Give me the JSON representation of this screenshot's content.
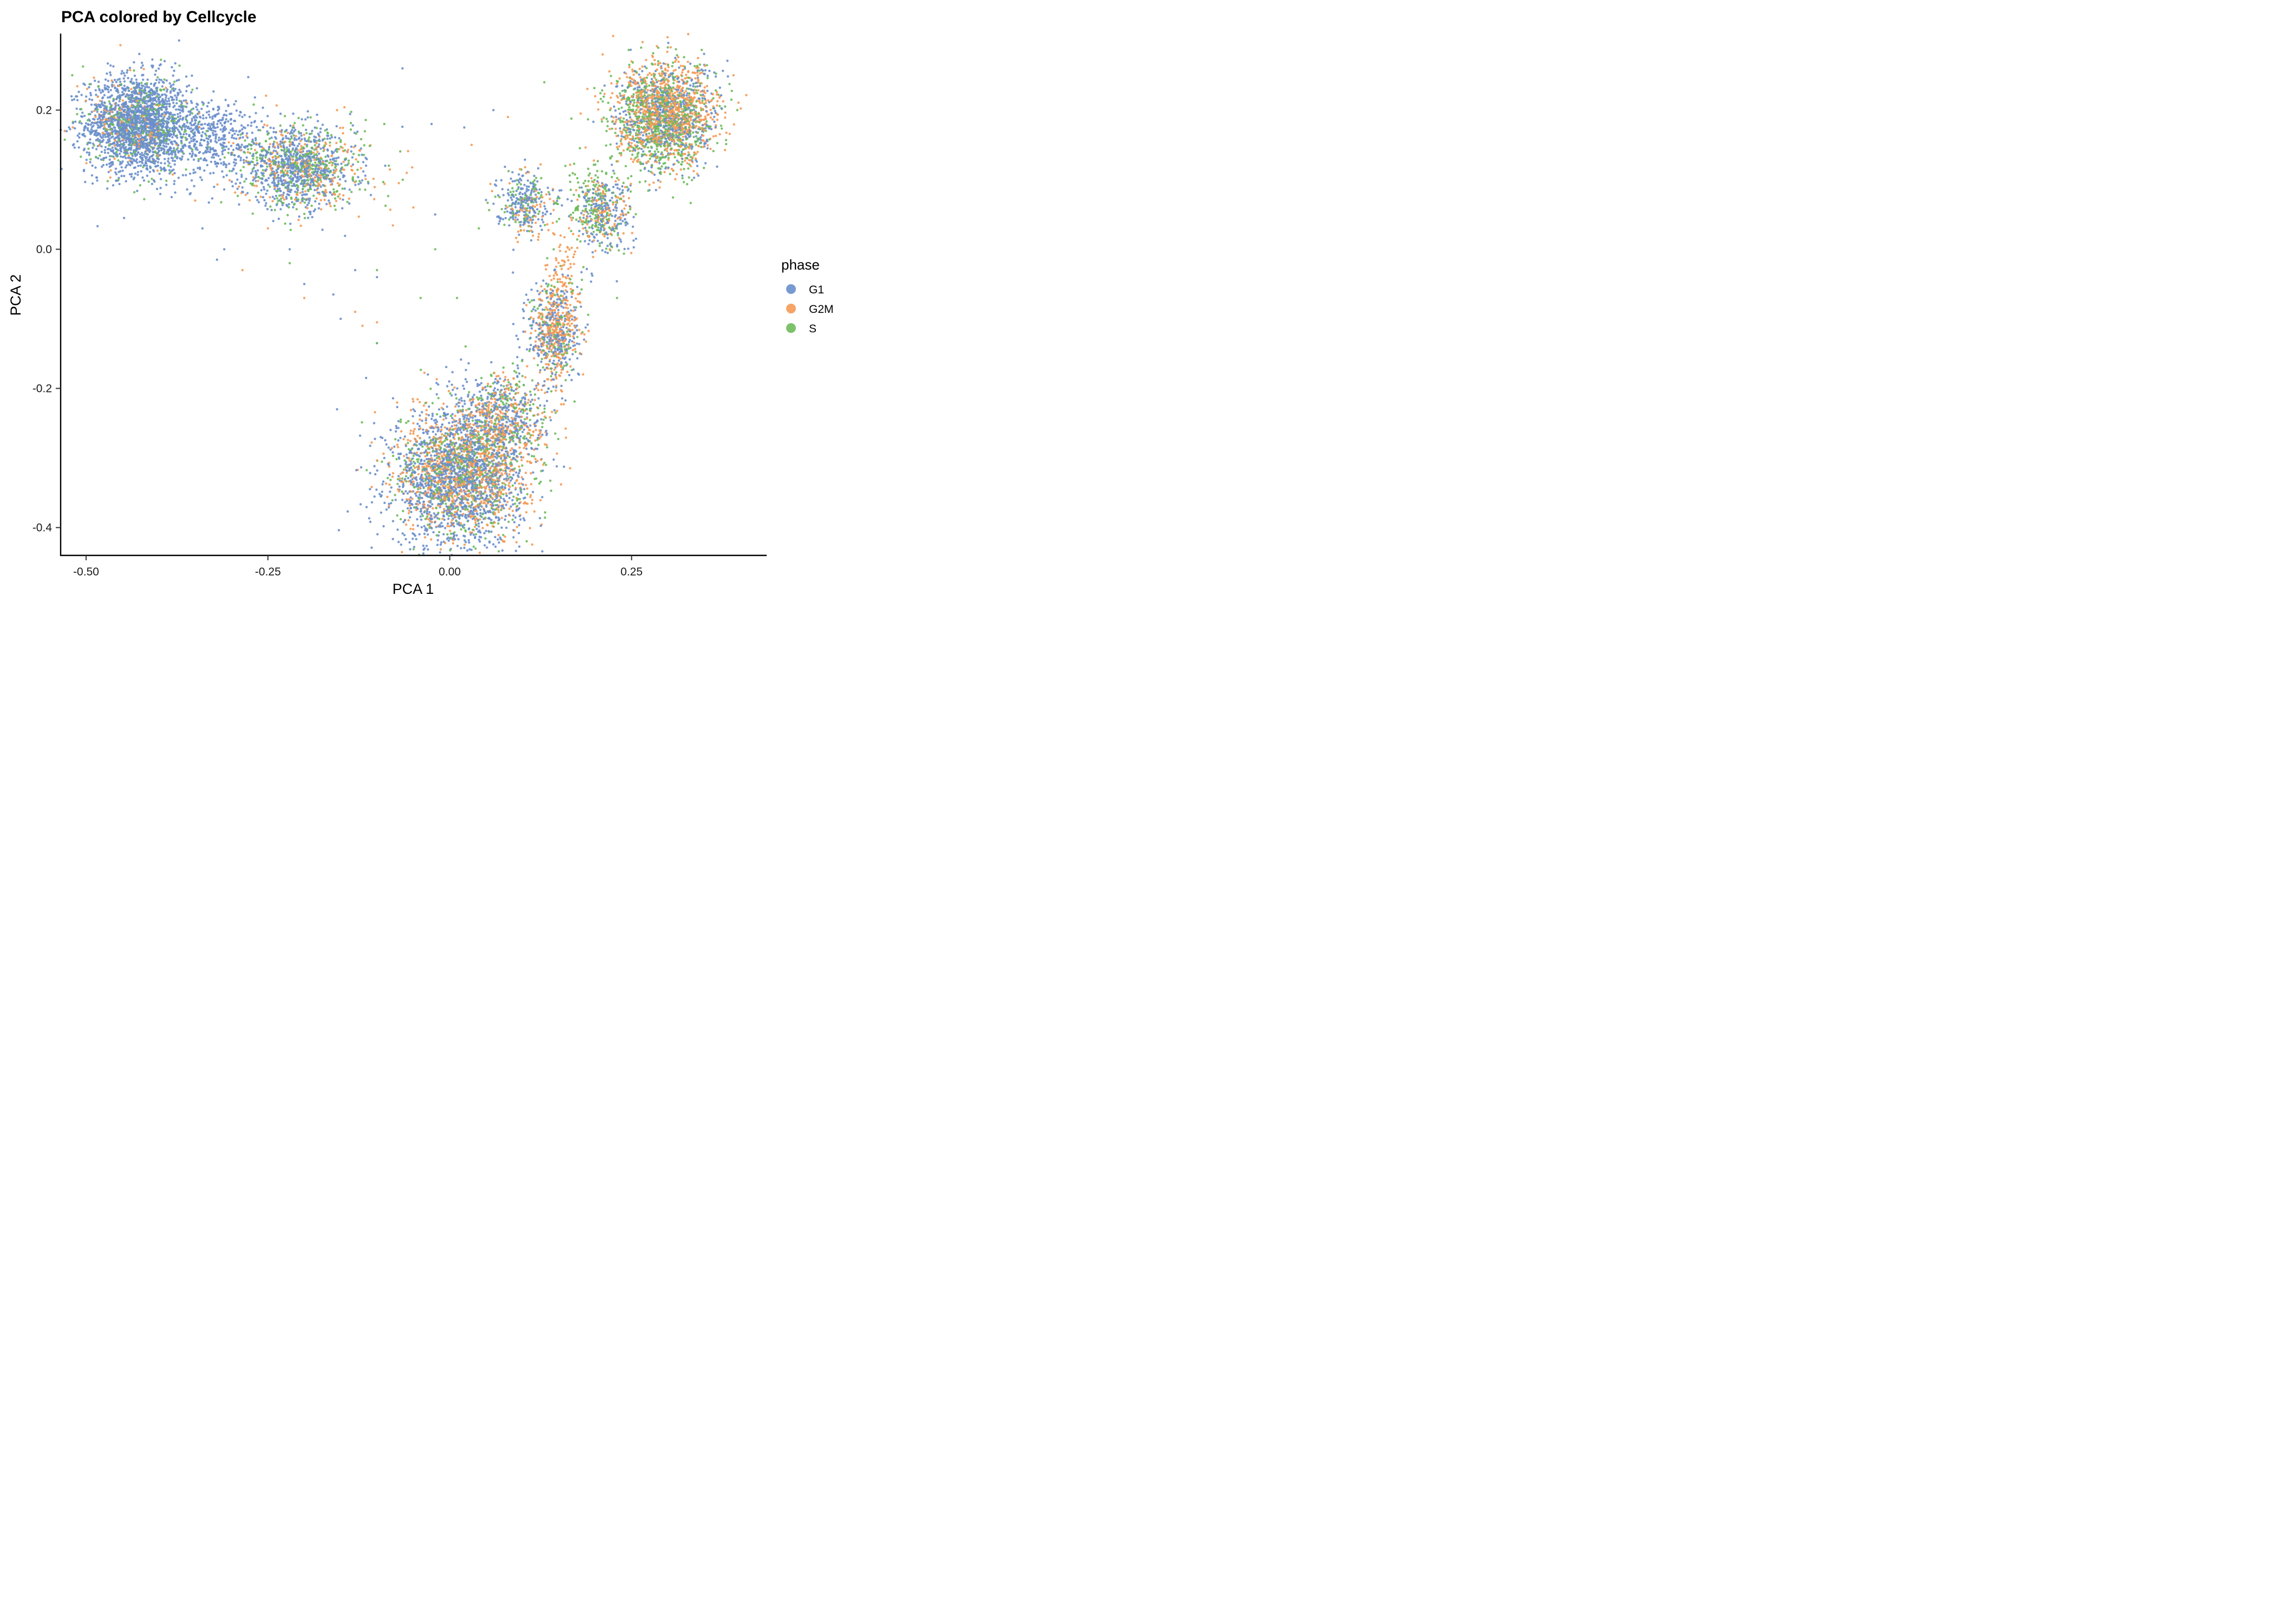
{
  "chart_data": {
    "type": "scatter",
    "title": "PCA colored by Cellcycle",
    "xlabel": "PCA 1",
    "ylabel": "PCA 2",
    "xlim": [
      -0.535,
      0.435
    ],
    "ylim": [
      -0.44,
      0.31
    ],
    "x_ticks": [
      -0.5,
      -0.25,
      0.0,
      0.25
    ],
    "x_tick_labels": [
      "-0.50",
      "-0.25",
      "0.00",
      "0.25"
    ],
    "y_ticks": [
      -0.4,
      -0.2,
      0.0,
      0.2
    ],
    "y_tick_labels": [
      "-0.4",
      "-0.2",
      "0.0",
      "0.2"
    ],
    "grid": false,
    "legend": {
      "title": "phase",
      "position": "right"
    },
    "series": [
      {
        "name": "G1",
        "color": "#6A8FCB",
        "clusters": [
          {
            "center": [
              -0.43,
              0.18
            ],
            "sd": [
              0.035,
              0.035
            ],
            "n": 1800
          },
          {
            "center": [
              -0.33,
              0.16
            ],
            "sd": [
              0.04,
              0.03
            ],
            "n": 500
          },
          {
            "center": [
              -0.21,
              0.115
            ],
            "sd": [
              0.04,
              0.028
            ],
            "n": 700
          },
          {
            "center": [
              0.01,
              -0.33
            ],
            "sd": [
              0.045,
              0.05
            ],
            "n": 1500
          },
          {
            "center": [
              0.07,
              -0.24
            ],
            "sd": [
              0.03,
              0.035
            ],
            "n": 350
          },
          {
            "center": [
              0.145,
              -0.12
            ],
            "sd": [
              0.018,
              0.04
            ],
            "n": 300
          },
          {
            "center": [
              0.1,
              0.07
            ],
            "sd": [
              0.018,
              0.02
            ],
            "n": 200
          },
          {
            "center": [
              0.21,
              0.05
            ],
            "sd": [
              0.02,
              0.028
            ],
            "n": 200
          },
          {
            "center": [
              0.3,
              0.19
            ],
            "sd": [
              0.035,
              0.038
            ],
            "n": 550
          }
        ],
        "outliers": [
          [
            -0.34,
            0.03
          ],
          [
            -0.31,
            0.0
          ],
          [
            -0.32,
            -0.015
          ],
          [
            -0.22,
            0.0
          ],
          [
            -0.2,
            -0.05
          ],
          [
            -0.16,
            -0.065
          ],
          [
            -0.15,
            -0.1
          ],
          [
            -0.13,
            -0.03
          ],
          [
            -0.1,
            -0.04
          ],
          [
            -0.1,
            -0.135
          ],
          [
            -0.115,
            -0.185
          ],
          [
            -0.155,
            -0.23
          ],
          [
            -0.095,
            -0.27
          ],
          [
            -0.09,
            -0.3
          ],
          [
            -0.065,
            0.26
          ],
          [
            -0.025,
            0.18
          ],
          [
            0.06,
            0.2
          ],
          [
            0.02,
            0.175
          ],
          [
            0.23,
            0.07
          ],
          [
            0.31,
            0.275
          ],
          [
            0.35,
            0.265
          ],
          [
            -0.02,
            0.05
          ],
          [
            0.05,
            -0.405
          ]
        ]
      },
      {
        "name": "G2M",
        "color": "#F59A55",
        "clusters": [
          {
            "center": [
              -0.44,
              0.18
            ],
            "sd": [
              0.03,
              0.03
            ],
            "n": 150
          },
          {
            "center": [
              -0.2,
              0.12
            ],
            "sd": [
              0.045,
              0.03
            ],
            "n": 250
          },
          {
            "center": [
              0.02,
              -0.32
            ],
            "sd": [
              0.045,
              0.045
            ],
            "n": 900
          },
          {
            "center": [
              0.08,
              -0.25
            ],
            "sd": [
              0.03,
              0.035
            ],
            "n": 250
          },
          {
            "center": [
              0.145,
              -0.12
            ],
            "sd": [
              0.015,
              0.035
            ],
            "n": 300
          },
          {
            "center": [
              0.155,
              -0.04
            ],
            "sd": [
              0.012,
              0.03
            ],
            "n": 80
          },
          {
            "center": [
              0.11,
              0.06
            ],
            "sd": [
              0.02,
              0.025
            ],
            "n": 70
          },
          {
            "center": [
              0.21,
              0.05
            ],
            "sd": [
              0.02,
              0.025
            ],
            "n": 120
          },
          {
            "center": [
              0.3,
              0.195
            ],
            "sd": [
              0.035,
              0.035
            ],
            "n": 900
          }
        ],
        "outliers": [
          [
            -0.285,
            -0.03
          ],
          [
            -0.25,
            0.03
          ],
          [
            -0.35,
            0.07
          ],
          [
            -0.2,
            -0.07
          ],
          [
            -0.13,
            -0.09
          ],
          [
            -0.12,
            -0.11
          ],
          [
            -0.1,
            -0.105
          ],
          [
            -0.07,
            0.095
          ],
          [
            -0.05,
            0.06
          ],
          [
            -0.05,
            -0.25
          ],
          [
            0.08,
            0.19
          ],
          [
            0.18,
            0.195
          ],
          [
            0.2,
            0.22
          ],
          [
            0.22,
            0.0
          ],
          [
            0.25,
            0.27
          ],
          [
            0.27,
            0.272
          ],
          [
            0.39,
            0.25
          ],
          [
            -0.155,
            0.2
          ],
          [
            0.03,
            0.15
          ]
        ]
      },
      {
        "name": "S",
        "color": "#6DBB5A",
        "clusters": [
          {
            "center": [
              -0.42,
              0.18
            ],
            "sd": [
              0.035,
              0.035
            ],
            "n": 300
          },
          {
            "center": [
              -0.2,
              0.12
            ],
            "sd": [
              0.045,
              0.03
            ],
            "n": 350
          },
          {
            "center": [
              0.02,
              -0.32
            ],
            "sd": [
              0.045,
              0.05
            ],
            "n": 500
          },
          {
            "center": [
              0.08,
              -0.24
            ],
            "sd": [
              0.03,
              0.035
            ],
            "n": 150
          },
          {
            "center": [
              0.145,
              -0.12
            ],
            "sd": [
              0.016,
              0.04
            ],
            "n": 120
          },
          {
            "center": [
              0.1,
              0.07
            ],
            "sd": [
              0.02,
              0.022
            ],
            "n": 80
          },
          {
            "center": [
              0.2,
              0.06
            ],
            "sd": [
              0.022,
              0.03
            ],
            "n": 180
          },
          {
            "center": [
              0.29,
              0.185
            ],
            "sd": [
              0.035,
              0.038
            ],
            "n": 700
          }
        ],
        "outliers": [
          [
            -0.22,
            -0.02
          ],
          [
            -0.1,
            -0.03
          ],
          [
            -0.1,
            -0.135
          ],
          [
            -0.04,
            -0.07
          ],
          [
            0.01,
            -0.07
          ],
          [
            0.04,
            0.03
          ],
          [
            0.13,
            0.24
          ],
          [
            0.23,
            -0.07
          ],
          [
            -0.09,
            0.18
          ],
          [
            -0.02,
            0.0
          ]
        ]
      }
    ]
  }
}
